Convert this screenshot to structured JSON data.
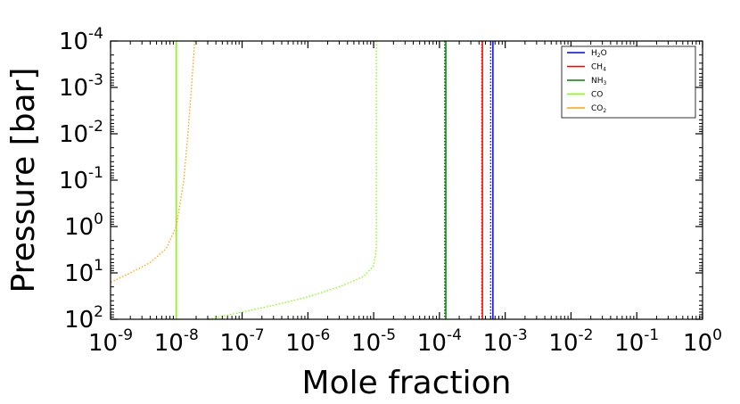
{
  "chart_data": {
    "type": "line",
    "xlabel": "Mole fraction",
    "ylabel": "Pressure [bar]",
    "x_scale": "log",
    "y_scale": "log",
    "y_inverted": true,
    "xlim": [
      1e-09,
      1
    ],
    "ylim": [
      100,
      0.0001
    ],
    "x_tick_labels": [
      {
        "base": "10",
        "exp": "-9",
        "value": 1e-09
      },
      {
        "base": "10",
        "exp": "-8",
        "value": 1e-08
      },
      {
        "base": "10",
        "exp": "-7",
        "value": 1e-07
      },
      {
        "base": "10",
        "exp": "-6",
        "value": 1e-06
      },
      {
        "base": "10",
        "exp": "-5",
        "value": 1e-05
      },
      {
        "base": "10",
        "exp": "-4",
        "value": 0.0001
      },
      {
        "base": "10",
        "exp": "-3",
        "value": 0.001
      },
      {
        "base": "10",
        "exp": "-2",
        "value": 0.01
      },
      {
        "base": "10",
        "exp": "-1",
        "value": 0.1
      },
      {
        "base": "10",
        "exp": "0",
        "value": 1
      }
    ],
    "y_tick_labels": [
      {
        "base": "10",
        "exp": "-4",
        "value": 0.0001
      },
      {
        "base": "10",
        "exp": "-3",
        "value": 0.001
      },
      {
        "base": "10",
        "exp": "-2",
        "value": 0.01
      },
      {
        "base": "10",
        "exp": "-1",
        "value": 0.1
      },
      {
        "base": "10",
        "exp": "0",
        "value": 1
      },
      {
        "base": "10",
        "exp": "1",
        "value": 10
      },
      {
        "base": "10",
        "exp": "2",
        "value": 100
      }
    ],
    "legend": {
      "position": "upper-right",
      "entries": [
        {
          "label": "H",
          "sub": "2",
          "suffix": "O",
          "color": "#0000ff"
        },
        {
          "label": "CH",
          "sub": "4",
          "suffix": "",
          "color": "#ff0000"
        },
        {
          "label": "NH",
          "sub": "3",
          "suffix": "",
          "color": "#008000"
        },
        {
          "label": "CO",
          "sub": "",
          "suffix": "",
          "color": "#7fff00"
        },
        {
          "label": "CO",
          "sub": "2",
          "suffix": "",
          "color": "#ffa500"
        }
      ]
    },
    "series": [
      {
        "key": "h2o",
        "color": "#0000ff",
        "style": "solid",
        "points": [
          [
            0.00065,
            0.0001
          ],
          [
            0.00065,
            100
          ]
        ]
      },
      {
        "key": "h2o-dotted",
        "color": "#0000ff",
        "style": "dotted",
        "points": [
          [
            0.0006,
            0.0001
          ],
          [
            0.0006,
            100
          ]
        ]
      },
      {
        "key": "ch4",
        "color": "#ff0000",
        "style": "solid",
        "points": [
          [
            0.00045,
            0.0001
          ],
          [
            0.00045,
            100
          ]
        ]
      },
      {
        "key": "ch4-dotted",
        "color": "#ff0000",
        "style": "dotted",
        "points": [
          [
            0.00044,
            0.0001
          ],
          [
            0.00044,
            100
          ]
        ]
      },
      {
        "key": "nh3",
        "color": "#008000",
        "style": "solid",
        "points": [
          [
            0.000125,
            0.0001
          ],
          [
            0.000125,
            100
          ]
        ]
      },
      {
        "key": "nh3-dotted",
        "color": "#008000",
        "style": "dotted",
        "points": [
          [
            0.00012,
            0.0001
          ],
          [
            0.00012,
            100
          ]
        ]
      },
      {
        "key": "co",
        "color": "#7fff00",
        "style": "solid",
        "points": [
          [
            1e-08,
            0.0001
          ],
          [
            1e-08,
            100
          ]
        ]
      },
      {
        "key": "co-dotted",
        "color": "#7fff00",
        "style": "dotted",
        "points": [
          [
            1.1e-05,
            0.0001
          ],
          [
            1.1e-05,
            0.01
          ],
          [
            1.1e-05,
            1
          ],
          [
            1.1e-05,
            3
          ],
          [
            1e-05,
            7
          ],
          [
            7e-06,
            12
          ],
          [
            3e-06,
            20
          ],
          [
            1e-06,
            33
          ],
          [
            3e-07,
            50
          ],
          [
            1e-07,
            70
          ],
          [
            3e-08,
            100
          ]
        ]
      },
      {
        "key": "co2-dotted",
        "color": "#ffa500",
        "style": "dotted",
        "points": [
          [
            1.9e-08,
            0.0001
          ],
          [
            1.7e-08,
            0.001
          ],
          [
            1.5e-08,
            0.01
          ],
          [
            1.3e-08,
            0.1
          ],
          [
            1e-08,
            1
          ],
          [
            7e-09,
            3
          ],
          [
            4e-09,
            6
          ],
          [
            2e-09,
            10
          ],
          [
            1e-09,
            16
          ]
        ]
      }
    ]
  }
}
